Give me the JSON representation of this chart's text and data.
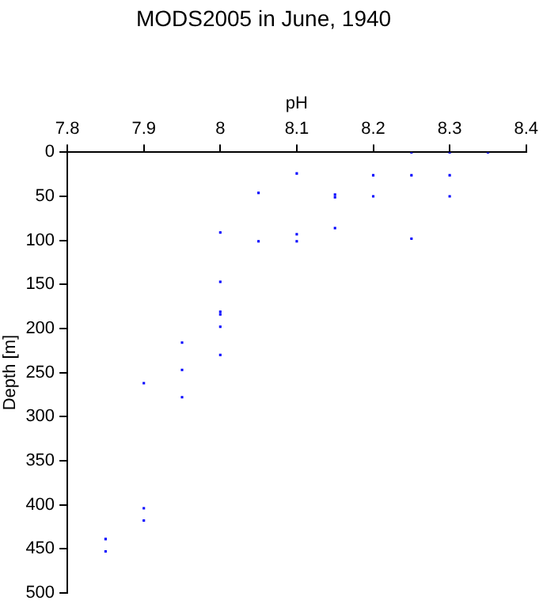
{
  "chart_data": {
    "type": "scatter",
    "title": "MODS2005 in June, 1940",
    "xlabel": "pH",
    "ylabel": "Depth [m]",
    "x": [
      8.25,
      8.3,
      8.35,
      8.1,
      8.2,
      8.25,
      8.3,
      8.05,
      8.15,
      8.15,
      8.2,
      8.3,
      8.0,
      8.15,
      8.05,
      8.1,
      8.1,
      8.25,
      8.0,
      8.0,
      8.0,
      8.0,
      8.0,
      7.95,
      7.95,
      7.95,
      7.9,
      7.9,
      7.9,
      7.85,
      7.85
    ],
    "values": [
      0,
      0,
      0,
      24,
      26,
      26,
      26,
      46,
      48,
      51,
      50,
      50,
      91,
      86,
      101,
      93,
      101,
      98,
      147,
      181,
      184,
      198,
      230,
      216,
      247,
      278,
      262,
      404,
      418,
      439,
      453
    ],
    "color": "#0000ff",
    "marker": "square",
    "xlim": [
      7.8,
      8.4
    ],
    "xticks": [
      7.8,
      7.9,
      8,
      8.1,
      8.2,
      8.3,
      8.4
    ],
    "ylim": [
      500,
      0
    ],
    "yticks": [
      0,
      50,
      100,
      150,
      200,
      250,
      300,
      350,
      400,
      450,
      500
    ],
    "grid": false,
    "legend": false
  }
}
